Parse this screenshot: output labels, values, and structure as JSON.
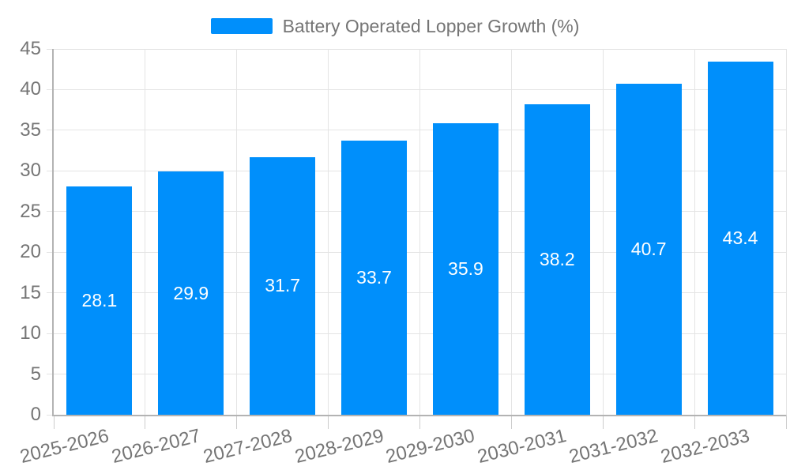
{
  "chart_data": {
    "type": "bar",
    "title": "",
    "xlabel": "",
    "ylabel": "",
    "legend": {
      "position": "top",
      "entries": [
        "Battery Operated Lopper Growth (%)"
      ]
    },
    "series_name": "Battery Operated Lopper Growth (%)",
    "categories": [
      "2025-2026",
      "2026-2027",
      "2027-2028",
      "2028-2029",
      "2029-2030",
      "2030-2031",
      "2031-2032",
      "2032-2033"
    ],
    "values": [
      28.1,
      29.9,
      31.7,
      33.7,
      35.9,
      38.2,
      40.7,
      43.4
    ],
    "value_labels_shown": true,
    "ylim": [
      0,
      45
    ],
    "ytick_interval": 5,
    "yticks": [
      0,
      5,
      10,
      15,
      20,
      25,
      30,
      35,
      40,
      45
    ],
    "grid": "both",
    "colors": {
      "bar": "#008FFB",
      "axis_text": "#757575",
      "legend_text": "#757575",
      "value_label_text": "#ffffff",
      "gridline": "#e4e4e4",
      "axis_line": "#b3b3b3",
      "tick_mark": "#cccccc",
      "background": "#ffffff"
    }
  }
}
